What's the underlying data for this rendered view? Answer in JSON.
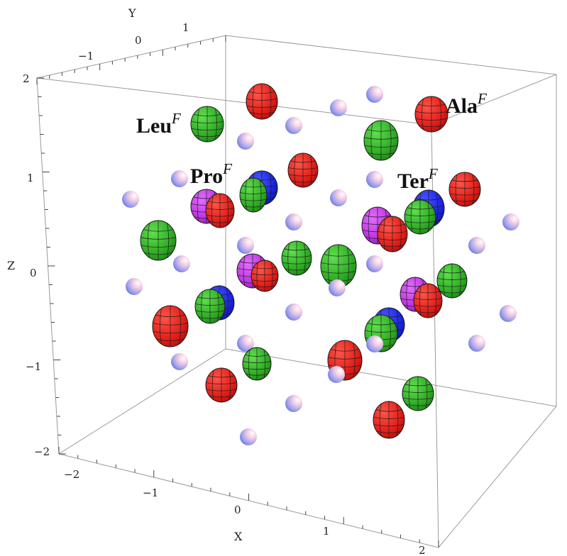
{
  "chart_data": {
    "type": "scatter",
    "title": "",
    "axes": {
      "x": {
        "label": "X",
        "ticks": [
          "−2",
          "−1",
          "0",
          "1",
          "2"
        ]
      },
      "y": {
        "label": "Y",
        "ticks": [
          "−1",
          "0",
          "1"
        ]
      },
      "z": {
        "label": "Z",
        "ticks": [
          "−2",
          "−1",
          "0",
          "1",
          "2"
        ]
      }
    },
    "colors": {
      "red": "#e8231e",
      "green": "#34b52a",
      "blue": "#1c27e8",
      "magenta": "#c537e6",
      "lattice_node": "#d9d6f0"
    },
    "labels": [
      {
        "name": "Leu",
        "sup": "F"
      },
      {
        "name": "Pro",
        "sup": "F"
      },
      {
        "name": "Ter",
        "sup": "F"
      },
      {
        "name": "Ala",
        "sup": "F"
      }
    ],
    "series": [
      {
        "name": "Leu",
        "color": "green"
      },
      {
        "name": "Pro",
        "color": "magenta"
      },
      {
        "name": "Ter",
        "color": "blue"
      },
      {
        "name": "Ala",
        "color": "red"
      }
    ]
  }
}
